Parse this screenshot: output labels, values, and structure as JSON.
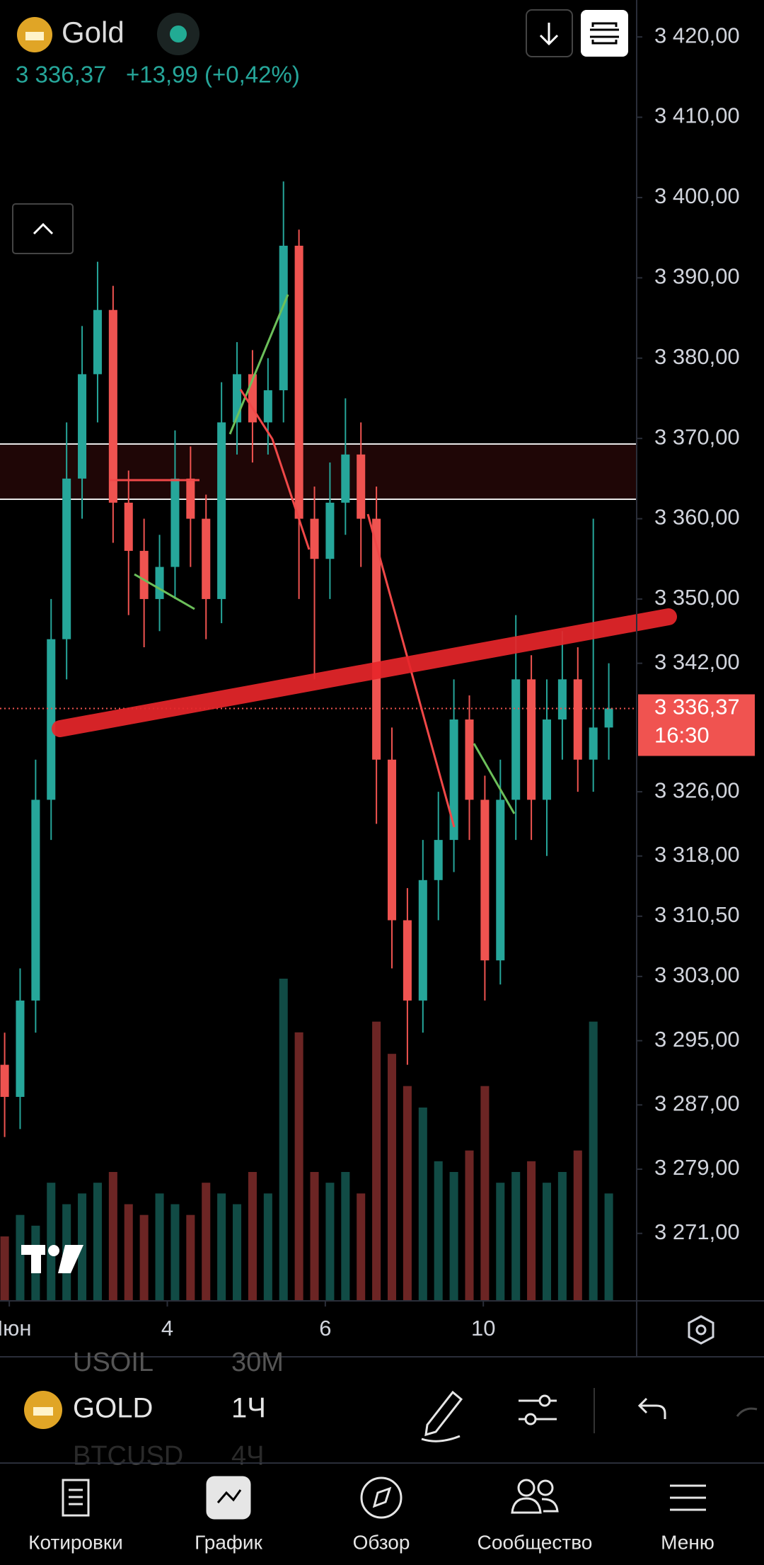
{
  "header": {
    "symbol": "Gold",
    "price": "3 336,37",
    "change": "+13,99 (+0,42%)"
  },
  "chart_data": {
    "type": "candlestick",
    "candles": [
      [
        3292,
        3296,
        3283,
        3288
      ],
      [
        3288,
        3304,
        3284,
        3300
      ],
      [
        3300,
        3330,
        3296,
        3325
      ],
      [
        3325,
        3350,
        3320,
        3345
      ],
      [
        3345,
        3372,
        3340,
        3365
      ],
      [
        3365,
        3384,
        3360,
        3378
      ],
      [
        3378,
        3392,
        3372,
        3386
      ],
      [
        3386,
        3389,
        3357,
        3362
      ],
      [
        3362,
        3366,
        3348,
        3356
      ],
      [
        3356,
        3360,
        3344,
        3350
      ],
      [
        3350,
        3358,
        3346,
        3354
      ],
      [
        3354,
        3371,
        3350,
        3365
      ],
      [
        3365,
        3369,
        3354,
        3360
      ],
      [
        3360,
        3363,
        3345,
        3350
      ],
      [
        3350,
        3377,
        3347,
        3372
      ],
      [
        3372,
        3382,
        3368,
        3378
      ],
      [
        3378,
        3381,
        3367,
        3372
      ],
      [
        3372,
        3380,
        3368,
        3376
      ],
      [
        3376,
        3402,
        3372,
        3394
      ],
      [
        3394,
        3396,
        3350,
        3360
      ],
      [
        3360,
        3364,
        3340,
        3355
      ],
      [
        3355,
        3367,
        3350,
        3362
      ],
      [
        3362,
        3375,
        3358,
        3368
      ],
      [
        3368,
        3372,
        3354,
        3360
      ],
      [
        3360,
        3364,
        3322,
        3330
      ],
      [
        3330,
        3334,
        3304,
        3310
      ],
      [
        3310,
        3314,
        3292,
        3300
      ],
      [
        3300,
        3320,
        3296,
        3315
      ],
      [
        3315,
        3326,
        3310,
        3320
      ],
      [
        3320,
        3340,
        3316,
        3335
      ],
      [
        3335,
        3338,
        3320,
        3325
      ],
      [
        3325,
        3328,
        3300,
        3305
      ],
      [
        3305,
        3330,
        3302,
        3325
      ],
      [
        3325,
        3348,
        3320,
        3340
      ],
      [
        3340,
        3343,
        3320,
        3325
      ],
      [
        3325,
        3340,
        3318,
        3335
      ],
      [
        3335,
        3346,
        3330,
        3340
      ],
      [
        3340,
        3344,
        3326,
        3330
      ],
      [
        3330,
        3360,
        3326,
        3334
      ],
      [
        3334,
        3342,
        3330,
        3336.37
      ]
    ],
    "volumes": [
      60,
      80,
      70,
      110,
      90,
      100,
      110,
      120,
      90,
      80,
      100,
      90,
      80,
      110,
      100,
      90,
      120,
      100,
      300,
      250,
      120,
      110,
      120,
      100,
      260,
      230,
      200,
      180,
      130,
      120,
      140,
      200,
      110,
      120,
      130,
      110,
      120,
      140,
      260,
      100
    ],
    "colors": {
      "up": "#26a69a",
      "down": "#ef5350"
    },
    "ylim": [
      3262.6,
      3424.6
    ],
    "yticks": [
      {
        "value": 3420,
        "label": "3 420,00"
      },
      {
        "value": 3410,
        "label": "3 410,00"
      },
      {
        "value": 3400,
        "label": "3 400,00"
      },
      {
        "value": 3390,
        "label": "3 390,00"
      },
      {
        "value": 3380,
        "label": "3 380,00"
      },
      {
        "value": 3370,
        "label": "3 370,00"
      },
      {
        "value": 3360,
        "label": "3 360,00"
      },
      {
        "value": 3350,
        "label": "3 350,00"
      },
      {
        "value": 3342,
        "label": "3 342,00"
      },
      {
        "value": 3326,
        "label": "3 326,00"
      },
      {
        "value": 3318,
        "label": "3 318,00"
      },
      {
        "value": 3310.5,
        "label": "3 310,50"
      },
      {
        "value": 3303,
        "label": "3 303,00"
      },
      {
        "value": 3295,
        "label": "3 295,00"
      },
      {
        "value": 3287,
        "label": "3 287,00"
      },
      {
        "value": 3279,
        "label": "3 279,00"
      },
      {
        "value": 3271,
        "label": "3 271,00"
      }
    ],
    "xlim": [
      -0.3,
      40.8
    ],
    "xticks": [
      {
        "value": 0.3,
        "label": "Июн"
      },
      {
        "value": 10.5,
        "label": "4"
      },
      {
        "value": 20.7,
        "label": "6"
      },
      {
        "value": 30.9,
        "label": "10"
      }
    ],
    "last_price": {
      "value": 3336.37,
      "label": "3 336,37"
    },
    "countdown": "16:30"
  },
  "toolbar": {
    "symbols": [
      {
        "name": "USOIL",
        "interval": "30М"
      },
      {
        "name": "GOLD",
        "interval": "1Ч"
      },
      {
        "name": "BTCUSD",
        "interval": "4Ч"
      }
    ]
  },
  "nav": [
    "Котировки",
    "График",
    "Обзор",
    "Сообщество",
    "Меню"
  ]
}
